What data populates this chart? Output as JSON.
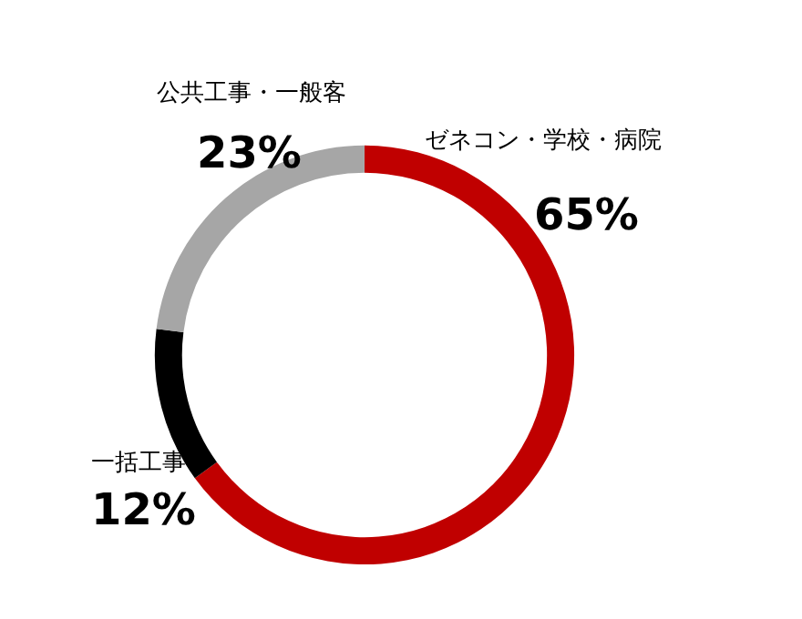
{
  "chart_data": {
    "type": "donut",
    "categories": [
      "ゼネコン・学校・病院",
      "一括工事",
      "公共工事・一般客"
    ],
    "values": [
      65,
      12,
      23
    ],
    "value_labels": [
      "65%",
      "12%",
      "23%"
    ],
    "colors": [
      "#c00000",
      "#000000",
      "#a6a6a6"
    ],
    "legend": false
  }
}
